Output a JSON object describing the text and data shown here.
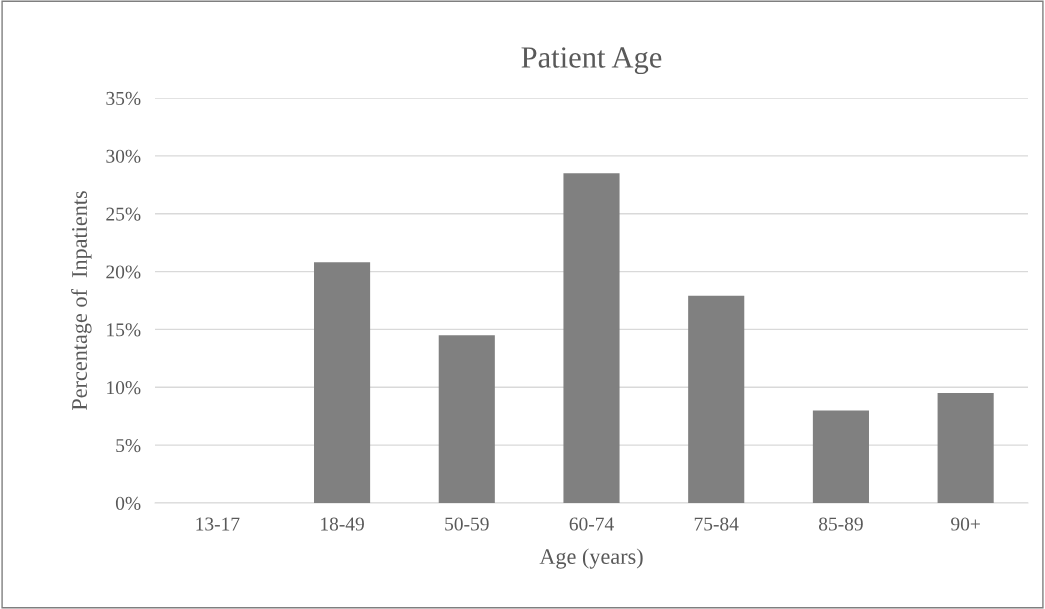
{
  "chart_data": {
    "type": "bar",
    "title": "Patient Age",
    "xlabel": "Age (years)",
    "ylabel": "Percentage of  Inpatients",
    "categories": [
      "13-17",
      "18-49",
      "50-59",
      "60-74",
      "75-84",
      "85-89",
      "90+"
    ],
    "values": [
      0,
      20.8,
      14.5,
      28.5,
      17.9,
      8.0,
      9.5
    ],
    "color": "#808080",
    "ylim": [
      0,
      35
    ],
    "yticks": [
      {
        "value": 0,
        "label": "0%"
      },
      {
        "value": 5,
        "label": "5%"
      },
      {
        "value": 10,
        "label": "10%"
      },
      {
        "value": 15,
        "label": "15%"
      },
      {
        "value": 20,
        "label": "20%"
      },
      {
        "value": 25,
        "label": "25%"
      },
      {
        "value": 30,
        "label": "30%"
      },
      {
        "value": 35,
        "label": "35%"
      }
    ],
    "grid": "y",
    "legend": false
  }
}
